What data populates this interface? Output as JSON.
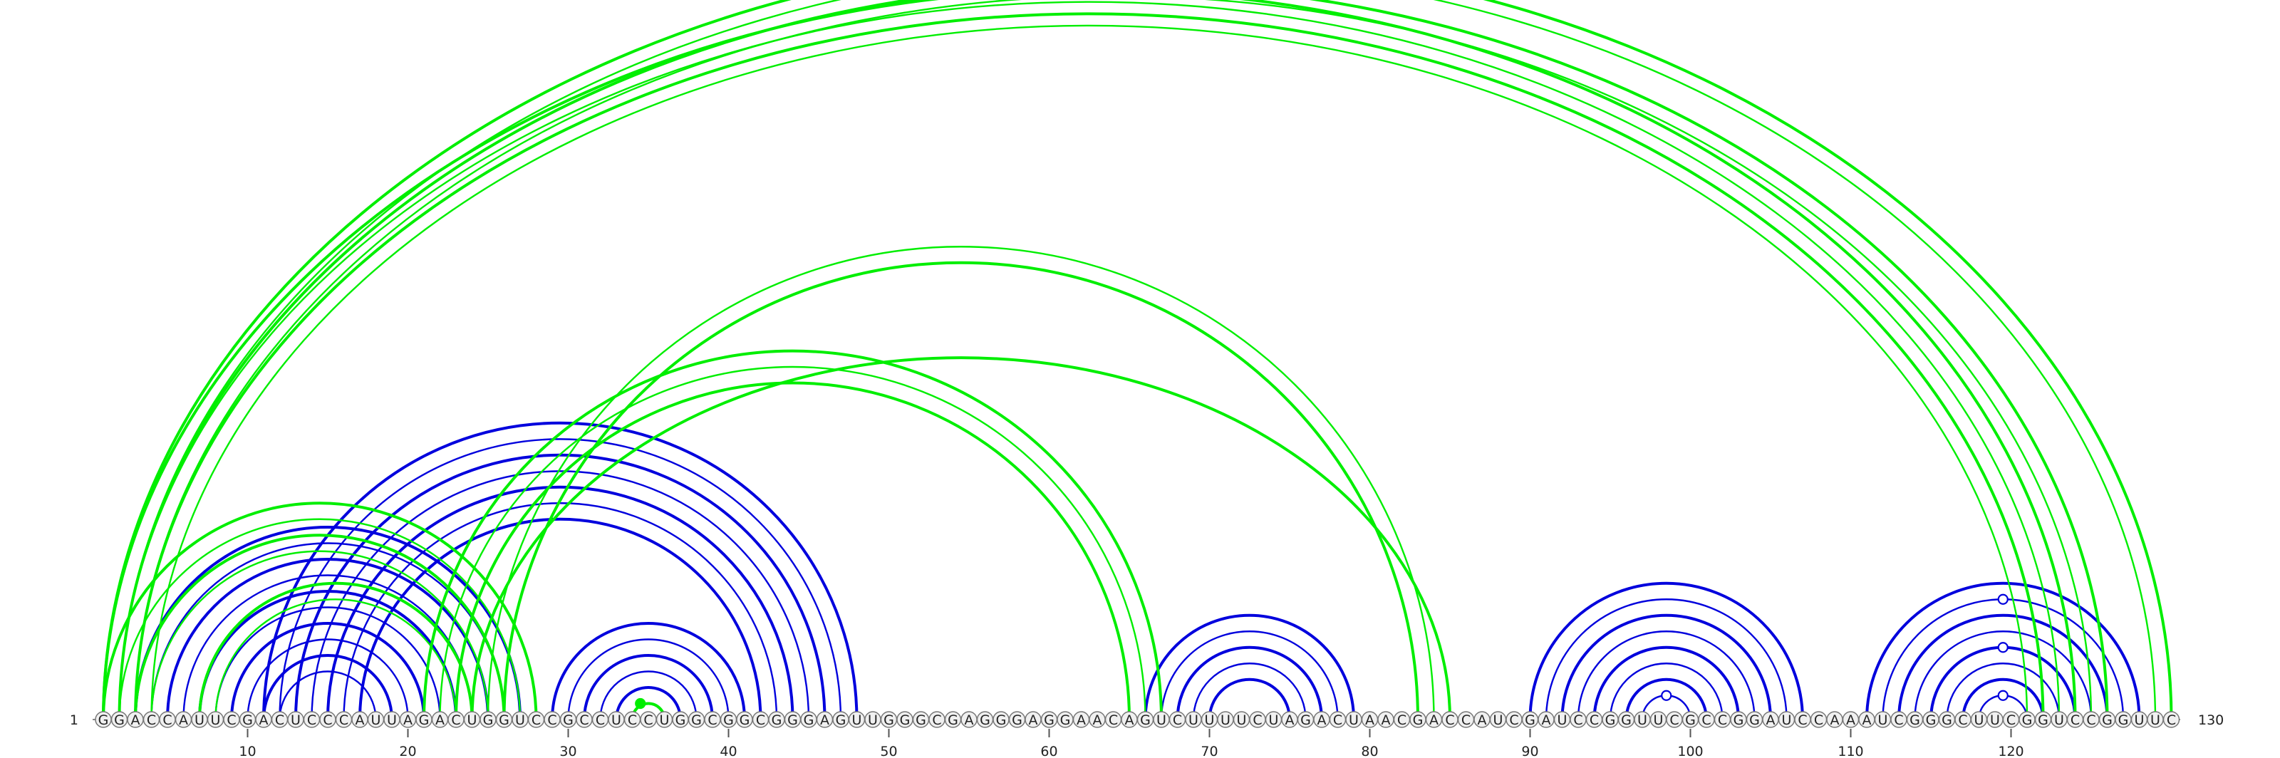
{
  "diagram": {
    "sequence": "GGACCAUUCGACUCCCAUUAGACUGGUCCGCCUCCUGGCGGCGGGAGUUGGGCGAGGGAGGAACAGUCUUUUCUAGACUAACGACCAUCGAUCCGGUUCGCCGGAUCCAAAUCGGGCUUCGGUCCGGUUC",
    "start_label": "1",
    "end_label": "130",
    "tick_labels": [
      "10",
      "20",
      "30",
      "40",
      "50",
      "60",
      "70",
      "80",
      "90",
      "100",
      "110",
      "120"
    ],
    "colors": {
      "blue": "#0000dd",
      "green": "#00ee00",
      "nucleotide_fill": "#f0f0f0",
      "nucleotide_stroke": "#777777"
    },
    "arc_groups": [
      {
        "color": "blue",
        "pairs": [
          [
            3,
            27
          ],
          [
            4,
            26
          ],
          [
            5,
            25
          ],
          [
            6,
            24
          ],
          [
            7,
            23
          ],
          [
            8,
            22
          ],
          [
            9,
            21
          ],
          [
            10,
            20
          ],
          [
            11,
            19
          ],
          [
            12,
            18
          ]
        ]
      },
      {
        "color": "blue",
        "pairs": [
          [
            11,
            48
          ],
          [
            12,
            47
          ],
          [
            13,
            46
          ],
          [
            14,
            45
          ],
          [
            15,
            44
          ],
          [
            16,
            43
          ],
          [
            17,
            42
          ]
        ]
      },
      {
        "color": "blue",
        "pairs": [
          [
            29,
            41
          ],
          [
            30,
            40
          ],
          [
            31,
            39
          ],
          [
            32,
            38
          ],
          [
            33,
            37
          ]
        ]
      },
      {
        "color": "blue",
        "pairs": [
          [
            66,
            79
          ],
          [
            67,
            78
          ],
          [
            68,
            77
          ],
          [
            69,
            76
          ],
          [
            70,
            75
          ]
        ]
      },
      {
        "color": "blue",
        "pairs": [
          [
            90,
            107
          ],
          [
            91,
            106
          ],
          [
            92,
            105
          ],
          [
            93,
            104
          ],
          [
            94,
            103
          ],
          [
            95,
            102
          ],
          [
            96,
            101
          ],
          [
            97,
            100
          ]
        ]
      },
      {
        "color": "blue",
        "pairs": [
          [
            111,
            128
          ],
          [
            112,
            127
          ],
          [
            113,
            126
          ],
          [
            114,
            125
          ],
          [
            115,
            124
          ],
          [
            116,
            123
          ],
          [
            117,
            122
          ],
          [
            118,
            121
          ]
        ]
      },
      {
        "color": "green",
        "pairs": [
          [
            1,
            28
          ],
          [
            2,
            27
          ],
          [
            3,
            26
          ],
          [
            4,
            25
          ]
        ]
      },
      {
        "color": "green",
        "pairs": [
          [
            7,
            24
          ],
          [
            8,
            23
          ]
        ]
      },
      {
        "color": "green",
        "pairs": [
          [
            1,
            124
          ],
          [
            2,
            123
          ],
          [
            3,
            122
          ],
          [
            4,
            121
          ]
        ]
      },
      {
        "color": "green",
        "pairs": [
          [
            2,
            126
          ],
          [
            3,
            125
          ]
        ]
      },
      {
        "color": "green",
        "pairs": [
          [
            1,
            130
          ],
          [
            2,
            129
          ]
        ]
      },
      {
        "color": "green",
        "pairs": [
          [
            21,
            67
          ],
          [
            22,
            66
          ],
          [
            23,
            65
          ]
        ]
      },
      {
        "color": "green",
        "pairs": [
          [
            24,
            85
          ],
          [
            25,
            84
          ],
          [
            26,
            83
          ]
        ]
      },
      {
        "color": "green",
        "pairs": [
          [
            34,
            36
          ]
        ]
      }
    ],
    "markers": [
      {
        "position": 65.5,
        "arc": [
          1,
          130
        ],
        "style": "open",
        "color": "green"
      },
      {
        "position": 34.5,
        "arc": [
          34,
          36
        ],
        "style": "filled",
        "color": "green"
      },
      {
        "position": 98.5,
        "arc": [
          97,
          100
        ],
        "style": "open",
        "color": "blue"
      },
      {
        "position": 119.5,
        "arc": [
          118,
          121
        ],
        "style": "open",
        "color": "blue"
      },
      {
        "position": 119.5,
        "arc": [
          115,
          124
        ],
        "style": "open",
        "color": "blue"
      },
      {
        "position": 119.5,
        "arc": [
          112,
          127
        ],
        "style": "open",
        "color": "blue"
      }
    ]
  }
}
